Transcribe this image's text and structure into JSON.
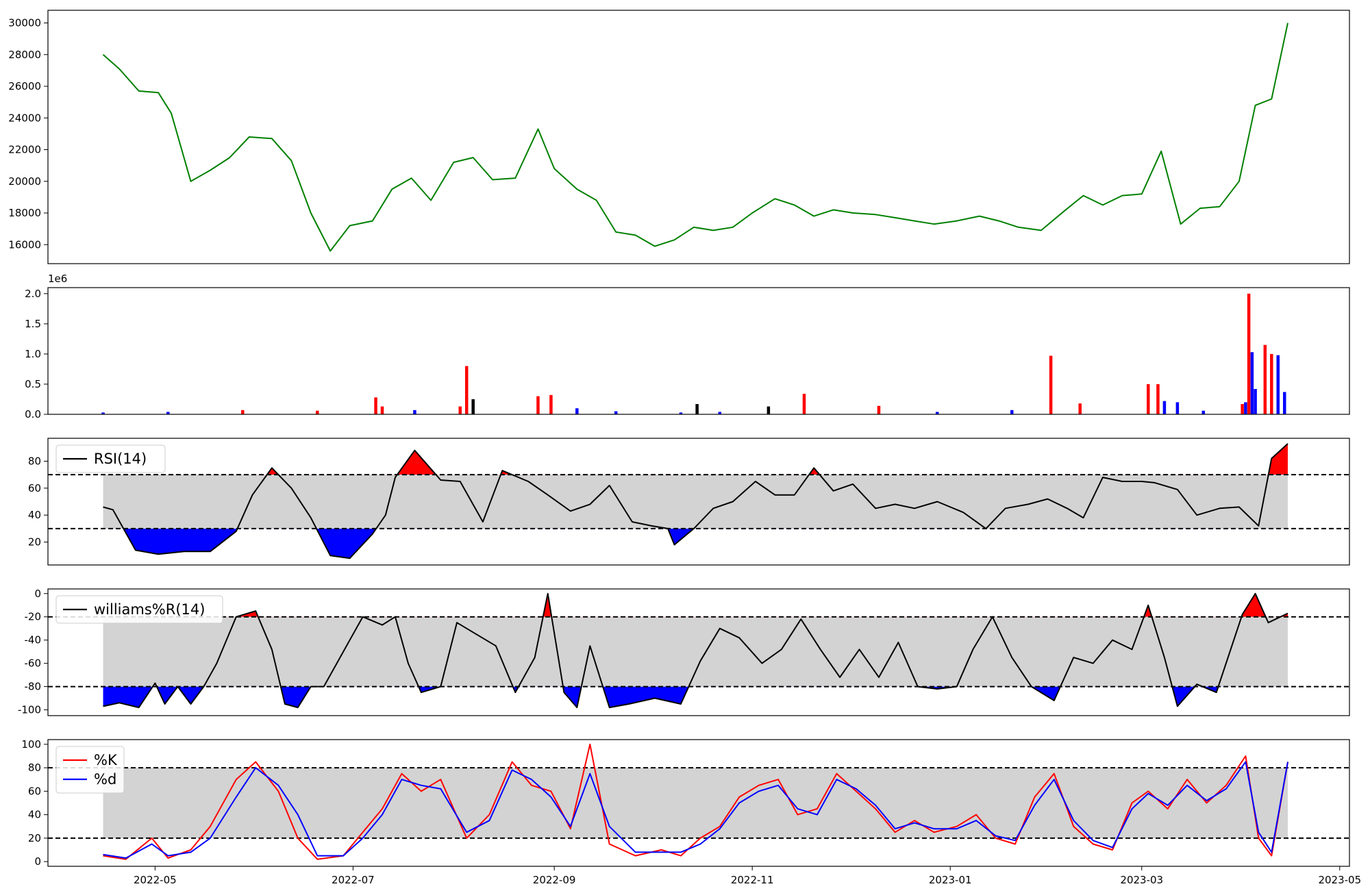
{
  "chart_data": [
    {
      "type": "line",
      "panel": "price",
      "x": [
        "2022-04-15",
        "2022-04-20",
        "2022-04-26",
        "2022-05-02",
        "2022-05-06",
        "2022-05-12",
        "2022-05-18",
        "2022-05-24",
        "2022-05-30",
        "2022-06-06",
        "2022-06-12",
        "2022-06-18",
        "2022-06-24",
        "2022-06-30",
        "2022-07-07",
        "2022-07-13",
        "2022-07-19",
        "2022-07-25",
        "2022-08-01",
        "2022-08-07",
        "2022-08-13",
        "2022-08-20",
        "2022-08-27",
        "2022-09-01",
        "2022-09-08",
        "2022-09-14",
        "2022-09-20",
        "2022-09-26",
        "2022-10-02",
        "2022-10-08",
        "2022-10-14",
        "2022-10-20",
        "2022-10-26",
        "2022-11-01",
        "2022-11-08",
        "2022-11-14",
        "2022-11-20",
        "2022-11-26",
        "2022-12-02",
        "2022-12-09",
        "2022-12-15",
        "2022-12-21",
        "2022-12-27",
        "2023-01-03",
        "2023-01-10",
        "2023-01-16",
        "2023-01-22",
        "2023-01-29",
        "2023-02-05",
        "2023-02-11",
        "2023-02-17",
        "2023-02-23",
        "2023-03-01",
        "2023-03-07",
        "2023-03-13",
        "2023-03-19",
        "2023-03-25",
        "2023-03-31",
        "2023-04-05",
        "2023-04-10",
        "2023-04-15"
      ],
      "y": [
        28000,
        27100,
        25700,
        25600,
        24300,
        20000,
        20700,
        21500,
        22800,
        22700,
        21300,
        18000,
        15600,
        17200,
        17500,
        19500,
        20200,
        18800,
        21200,
        21500,
        20100,
        20200,
        23300,
        20800,
        19500,
        18800,
        16800,
        16600,
        15900,
        16300,
        17100,
        16900,
        17100,
        18000,
        18900,
        18500,
        17800,
        18200,
        18000,
        17900,
        17700,
        17500,
        17300,
        17500,
        17800,
        17500,
        17100,
        16900,
        18100,
        19100,
        18500,
        19100,
        19200,
        21900,
        17300,
        18300,
        18400,
        20000,
        24800,
        25200,
        30000
      ],
      "series": [
        {
          "values": "y",
          "color": "#008000"
        }
      ],
      "ylim": [
        14800,
        30800
      ],
      "yticks": [
        "16000",
        "18000",
        "20000",
        "22000",
        "24000",
        "26000",
        "28000",
        "30000"
      ],
      "title": "",
      "xlabel": "",
      "ylabel": ""
    },
    {
      "type": "bar",
      "panel": "volume",
      "x": [
        "2022-04-15",
        "2022-05-05",
        "2022-05-28",
        "2022-06-20",
        "2022-07-08",
        "2022-07-10",
        "2022-07-20",
        "2022-08-03",
        "2022-08-05",
        "2022-08-07",
        "2022-08-27",
        "2022-08-31",
        "2022-09-08",
        "2022-09-20",
        "2022-10-10",
        "2022-10-15",
        "2022-10-22",
        "2022-11-06",
        "2022-11-17",
        "2022-12-10",
        "2022-12-28",
        "2023-01-20",
        "2023-02-01",
        "2023-02-10",
        "2023-03-03",
        "2023-03-06",
        "2023-03-08",
        "2023-03-12",
        "2023-03-20",
        "2023-04-01",
        "2023-04-02",
        "2023-04-03",
        "2023-04-04",
        "2023-04-05",
        "2023-04-08",
        "2023-04-10",
        "2023-04-12",
        "2023-04-14"
      ],
      "values": [
        0.03,
        0.04,
        0.07,
        0.06,
        0.28,
        0.13,
        0.07,
        0.13,
        0.8,
        0.25,
        0.3,
        0.32,
        0.1,
        0.05,
        0.03,
        0.17,
        0.04,
        0.13,
        0.34,
        0.14,
        0.04,
        0.07,
        0.97,
        0.18,
        0.5,
        0.5,
        0.22,
        0.2,
        0.06,
        0.17,
        0.2,
        2.0,
        1.03,
        0.42,
        1.15,
        1.0,
        0.98,
        0.37
      ],
      "colors": [
        "#0000ff",
        "#0000ff",
        "#ff0000",
        "#ff0000",
        "#ff0000",
        "#ff0000",
        "#0000ff",
        "#ff0000",
        "#ff0000",
        "#000000",
        "#ff0000",
        "#ff0000",
        "#0000ff",
        "#0000ff",
        "#0000ff",
        "#000000",
        "#0000ff",
        "#000000",
        "#ff0000",
        "#ff0000",
        "#0000ff",
        "#0000ff",
        "#ff0000",
        "#ff0000",
        "#ff0000",
        "#ff0000",
        "#0000ff",
        "#0000ff",
        "#0000ff",
        "#ff0000",
        "#0000ff",
        "#ff0000",
        "#0000ff",
        "#0000ff",
        "#ff0000",
        "#ff0000",
        "#0000ff",
        "#0000ff"
      ],
      "ylim": [
        0,
        2.1
      ],
      "yticks": [
        "0.0",
        "0.5",
        "1.0",
        "1.5",
        "2.0"
      ],
      "offset_text": "1e6",
      "title": "",
      "xlabel": "",
      "ylabel": ""
    },
    {
      "type": "line",
      "panel": "rsi",
      "x": [
        "2022-04-15",
        "2022-04-18",
        "2022-04-25",
        "2022-05-02",
        "2022-05-10",
        "2022-05-18",
        "2022-05-26",
        "2022-05-31",
        "2022-06-06",
        "2022-06-12",
        "2022-06-18",
        "2022-06-24",
        "2022-06-30",
        "2022-07-07",
        "2022-07-11",
        "2022-07-14",
        "2022-07-20",
        "2022-07-28",
        "2022-08-03",
        "2022-08-10",
        "2022-08-16",
        "2022-08-24",
        "2022-08-30",
        "2022-09-06",
        "2022-09-12",
        "2022-09-18",
        "2022-09-25",
        "2022-10-01",
        "2022-10-06",
        "2022-10-08",
        "2022-10-14",
        "2022-10-20",
        "2022-10-26",
        "2022-11-02",
        "2022-11-08",
        "2022-11-14",
        "2022-11-20",
        "2022-11-26",
        "2022-12-02",
        "2022-12-09",
        "2022-12-15",
        "2022-12-21",
        "2022-12-28",
        "2023-01-05",
        "2023-01-12",
        "2023-01-18",
        "2023-01-25",
        "2023-01-31",
        "2023-02-06",
        "2023-02-11",
        "2023-02-17",
        "2023-02-23",
        "2023-03-01",
        "2023-03-05",
        "2023-03-12",
        "2023-03-18",
        "2023-03-25",
        "2023-03-31",
        "2023-04-06",
        "2023-04-10",
        "2023-04-15"
      ],
      "y": [
        46,
        44,
        14,
        11,
        13,
        13,
        28,
        55,
        75,
        60,
        38,
        10,
        8,
        26,
        40,
        68,
        88,
        66,
        65,
        35,
        73,
        65,
        55,
        43,
        48,
        62,
        35,
        32,
        30,
        18,
        30,
        45,
        50,
        65,
        55,
        55,
        75,
        58,
        63,
        45,
        48,
        45,
        50,
        42,
        30,
        45,
        48,
        52,
        45,
        38,
        68,
        65,
        65,
        64,
        59,
        40,
        45,
        46,
        32,
        82,
        93
      ],
      "series": [
        {
          "name": "RSI(14)",
          "values": "y",
          "color": "#000000"
        }
      ],
      "legend": "upper left",
      "thresholds": [
        70,
        30
      ],
      "fill_above_color": "#ff0000",
      "fill_below_color": "#0000ff",
      "band_color": "#d3d3d3",
      "ylim": [
        3,
        97
      ],
      "yticks": [
        "20",
        "40",
        "60",
        "80"
      ],
      "title": "",
      "xlabel": "",
      "ylabel": ""
    },
    {
      "type": "line",
      "panel": "williams",
      "x": [
        "2022-04-15",
        "2022-04-20",
        "2022-04-26",
        "2022-05-01",
        "2022-05-04",
        "2022-05-08",
        "2022-05-12",
        "2022-05-16",
        "2022-05-20",
        "2022-05-26",
        "2022-06-01",
        "2022-06-06",
        "2022-06-10",
        "2022-06-14",
        "2022-06-18",
        "2022-06-22",
        "2022-06-26",
        "2022-06-30",
        "2022-07-04",
        "2022-07-10",
        "2022-07-14",
        "2022-07-18",
        "2022-07-22",
        "2022-07-28",
        "2022-08-02",
        "2022-08-08",
        "2022-08-14",
        "2022-08-20",
        "2022-08-26",
        "2022-08-30",
        "2022-09-04",
        "2022-09-08",
        "2022-09-12",
        "2022-09-18",
        "2022-09-24",
        "2022-10-02",
        "2022-10-10",
        "2022-10-16",
        "2022-10-22",
        "2022-10-28",
        "2022-11-04",
        "2022-11-10",
        "2022-11-16",
        "2022-11-22",
        "2022-11-28",
        "2022-12-04",
        "2022-12-10",
        "2022-12-16",
        "2022-12-22",
        "2022-12-28",
        "2023-01-03",
        "2023-01-08",
        "2023-01-14",
        "2023-01-20",
        "2023-01-26",
        "2023-02-02",
        "2023-02-08",
        "2023-02-14",
        "2023-02-20",
        "2023-02-26",
        "2023-03-03",
        "2023-03-08",
        "2023-03-12",
        "2023-03-18",
        "2023-03-24",
        "2023-04-01",
        "2023-04-05",
        "2023-04-09",
        "2023-04-15"
      ],
      "y": [
        -97,
        -94,
        -98,
        -77,
        -95,
        -80,
        -95,
        -80,
        -60,
        -20,
        -15,
        -48,
        -95,
        -98,
        -80,
        -80,
        -60,
        -40,
        -20,
        -27,
        -20,
        -60,
        -85,
        -80,
        -25,
        -35,
        -45,
        -85,
        -55,
        0,
        -85,
        -98,
        -45,
        -98,
        -95,
        -90,
        -95,
        -58,
        -30,
        -38,
        -60,
        -48,
        -22,
        -48,
        -72,
        -48,
        -72,
        -42,
        -80,
        -82,
        -80,
        -48,
        -20,
        -55,
        -80,
        -92,
        -55,
        -60,
        -40,
        -48,
        -10,
        -55,
        -97,
        -78,
        -85,
        -18,
        0,
        -25,
        -17
      ],
      "series": [
        {
          "name": "williams%R(14)",
          "values": "y",
          "color": "#000000"
        }
      ],
      "legend": "upper left",
      "thresholds": [
        -20,
        -80
      ],
      "fill_above_color": "#ff0000",
      "fill_below_color": "#0000ff",
      "band_color": "#d3d3d3",
      "ylim": [
        -105,
        4
      ],
      "yticks": [
        "-100",
        "-80",
        "-60",
        "-40",
        "-20",
        "0"
      ],
      "title": "",
      "xlabel": "",
      "ylabel": ""
    },
    {
      "type": "line",
      "panel": "stochastic",
      "x": [
        "2022-04-15",
        "2022-04-22",
        "2022-04-30",
        "2022-05-05",
        "2022-05-12",
        "2022-05-18",
        "2022-05-26",
        "2022-06-01",
        "2022-06-08",
        "2022-06-14",
        "2022-06-20",
        "2022-06-28",
        "2022-07-04",
        "2022-07-10",
        "2022-07-16",
        "2022-07-22",
        "2022-07-28",
        "2022-08-05",
        "2022-08-12",
        "2022-08-19",
        "2022-08-25",
        "2022-08-31",
        "2022-09-06",
        "2022-09-12",
        "2022-09-18",
        "2022-09-26",
        "2022-10-04",
        "2022-10-10",
        "2022-10-16",
        "2022-10-22",
        "2022-10-28",
        "2022-11-03",
        "2022-11-09",
        "2022-11-15",
        "2022-11-21",
        "2022-11-27",
        "2022-12-03",
        "2022-12-09",
        "2022-12-15",
        "2022-12-21",
        "2022-12-27",
        "2023-01-03",
        "2023-01-09",
        "2023-01-15",
        "2023-01-21",
        "2023-01-27",
        "2023-02-02",
        "2023-02-08",
        "2023-02-14",
        "2023-02-20",
        "2023-02-26",
        "2023-03-03",
        "2023-03-09",
        "2023-03-15",
        "2023-03-21",
        "2023-03-27",
        "2023-04-02",
        "2023-04-06",
        "2023-04-10",
        "2023-04-15"
      ],
      "series": [
        {
          "name": "%K",
          "color": "#ff0000",
          "values": [
            5,
            2,
            20,
            3,
            10,
            30,
            70,
            85,
            60,
            20,
            2,
            5,
            25,
            45,
            75,
            60,
            70,
            20,
            40,
            85,
            65,
            60,
            28,
            100,
            15,
            5,
            10,
            5,
            20,
            30,
            55,
            65,
            70,
            40,
            45,
            75,
            60,
            45,
            25,
            35,
            25,
            30,
            40,
            20,
            15,
            55,
            75,
            30,
            15,
            10,
            50,
            60,
            45,
            70,
            50,
            65,
            90,
            20,
            5,
            85
          ]
        },
        {
          "name": "%d",
          "color": "#0000ff",
          "values": [
            6,
            3,
            15,
            5,
            8,
            20,
            55,
            80,
            65,
            40,
            5,
            5,
            20,
            40,
            70,
            65,
            62,
            25,
            35,
            78,
            70,
            55,
            30,
            75,
            30,
            8,
            8,
            8,
            15,
            28,
            50,
            60,
            65,
            45,
            40,
            70,
            62,
            48,
            28,
            33,
            28,
            28,
            35,
            22,
            18,
            48,
            70,
            35,
            18,
            12,
            45,
            58,
            48,
            65,
            52,
            62,
            85,
            25,
            8,
            85
          ]
        }
      ],
      "legend": "upper left",
      "thresholds": [
        80,
        20
      ],
      "band_color": "#d3d3d3",
      "ylim": [
        -4,
        104
      ],
      "yticks": [
        "0",
        "20",
        "40",
        "60",
        "80",
        "100"
      ],
      "xticks": [
        "2022-05",
        "2022-07",
        "2022-09",
        "2022-11",
        "2023-01",
        "2023-03",
        "2023-05"
      ],
      "title": "",
      "xlabel": "",
      "ylabel": ""
    }
  ]
}
